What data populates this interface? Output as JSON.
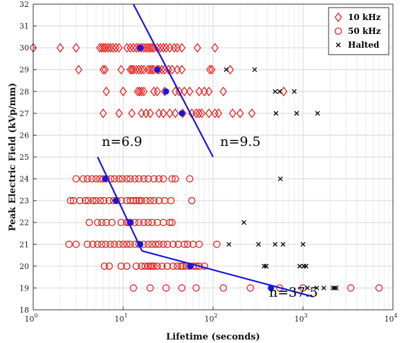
{
  "chart_data": {
    "type": "scatter",
    "xlabel": "Lifetime (seconds)",
    "ylabel": "Peak Electric Field (kVp/mm)",
    "xscale": "log",
    "xlim": [
      1,
      10000
    ],
    "ylim": [
      18,
      32
    ],
    "grid": true,
    "legend_position": "top-right",
    "x_ticks": [
      {
        "value": 1,
        "base": "10",
        "exp": "0"
      },
      {
        "value": 10,
        "base": "10",
        "exp": "1"
      },
      {
        "value": 100,
        "base": "10",
        "exp": "2"
      },
      {
        "value": 1000,
        "base": "10",
        "exp": "3"
      },
      {
        "value": 10000,
        "base": "10",
        "exp": "4"
      }
    ],
    "y_ticks": [
      "18",
      "19",
      "20",
      "21",
      "22",
      "23",
      "24",
      "25",
      "26",
      "27",
      "28",
      "29",
      "30",
      "31",
      "32"
    ],
    "series": [
      {
        "name": "10 kHz",
        "marker": "diamond",
        "color": "#e8211f",
        "points": [
          [
            1.0,
            30
          ],
          [
            2.0,
            30
          ],
          [
            3.0,
            30
          ],
          [
            5.5,
            30
          ],
          [
            5.8,
            30
          ],
          [
            6.1,
            30
          ],
          [
            6.4,
            30
          ],
          [
            6.8,
            30
          ],
          [
            7.2,
            30
          ],
          [
            7.7,
            30
          ],
          [
            8.3,
            30
          ],
          [
            9.0,
            30
          ],
          [
            11,
            30
          ],
          [
            12,
            30
          ],
          [
            13,
            30
          ],
          [
            14,
            30
          ],
          [
            15,
            30
          ],
          [
            16,
            30
          ],
          [
            17,
            30
          ],
          [
            18,
            30
          ],
          [
            19,
            30
          ],
          [
            20,
            30
          ],
          [
            21,
            30
          ],
          [
            22,
            30
          ],
          [
            24,
            30
          ],
          [
            26,
            30
          ],
          [
            28,
            30
          ],
          [
            30,
            30
          ],
          [
            33,
            30
          ],
          [
            37,
            30
          ],
          [
            40,
            30
          ],
          [
            45,
            30
          ],
          [
            67,
            30
          ],
          [
            105,
            30
          ],
          [
            3.2,
            29
          ],
          [
            6.0,
            29
          ],
          [
            6.3,
            29
          ],
          [
            9.5,
            29
          ],
          [
            12,
            29
          ],
          [
            12.5,
            29
          ],
          [
            13,
            29
          ],
          [
            14,
            29
          ],
          [
            15,
            29
          ],
          [
            16,
            29
          ],
          [
            17,
            29
          ],
          [
            19,
            29
          ],
          [
            20,
            29
          ],
          [
            21,
            29
          ],
          [
            22,
            29
          ],
          [
            24,
            29
          ],
          [
            25,
            29
          ],
          [
            27,
            29
          ],
          [
            29,
            29
          ],
          [
            32,
            29
          ],
          [
            35,
            29
          ],
          [
            40,
            29
          ],
          [
            45,
            29
          ],
          [
            92,
            29
          ],
          [
            97,
            29
          ],
          [
            155,
            29
          ],
          [
            6.5,
            28
          ],
          [
            10,
            28
          ],
          [
            14.5,
            28
          ],
          [
            15.2,
            28
          ],
          [
            16,
            28
          ],
          [
            17,
            28
          ],
          [
            22,
            28
          ],
          [
            24,
            28
          ],
          [
            29,
            28
          ],
          [
            38,
            28
          ],
          [
            42,
            28
          ],
          [
            48,
            28
          ],
          [
            55,
            28
          ],
          [
            70,
            28
          ],
          [
            80,
            28
          ],
          [
            90,
            28
          ],
          [
            130,
            28
          ],
          [
            610,
            28
          ],
          [
            6.0,
            27
          ],
          [
            9.0,
            27
          ],
          [
            12.5,
            27
          ],
          [
            16,
            27
          ],
          [
            18,
            27
          ],
          [
            20,
            27
          ],
          [
            25,
            27
          ],
          [
            28,
            27
          ],
          [
            33,
            27
          ],
          [
            38,
            27
          ],
          [
            46,
            27
          ],
          [
            58,
            27
          ],
          [
            65,
            27
          ],
          [
            70,
            27
          ],
          [
            75,
            27
          ],
          [
            90,
            27
          ],
          [
            105,
            27
          ],
          [
            115,
            27
          ],
          [
            165,
            27
          ],
          [
            200,
            27
          ],
          [
            270,
            27
          ]
        ]
      },
      {
        "name": "50 kHz",
        "marker": "circle",
        "color": "#e8211f",
        "points": [
          [
            3.0,
            24
          ],
          [
            3.6,
            24
          ],
          [
            4.0,
            24
          ],
          [
            4.5,
            24
          ],
          [
            5.0,
            24
          ],
          [
            5.5,
            24
          ],
          [
            6.0,
            24
          ],
          [
            6.5,
            24
          ],
          [
            7.3,
            24
          ],
          [
            8.0,
            24
          ],
          [
            9.0,
            24
          ],
          [
            9.8,
            24
          ],
          [
            11,
            24
          ],
          [
            12,
            24
          ],
          [
            13.5,
            24
          ],
          [
            15,
            24
          ],
          [
            17,
            24
          ],
          [
            19,
            24
          ],
          [
            22,
            24
          ],
          [
            25,
            24
          ],
          [
            28,
            24
          ],
          [
            35,
            24
          ],
          [
            38,
            24
          ],
          [
            55,
            24
          ],
          [
            2.6,
            23
          ],
          [
            2.8,
            23
          ],
          [
            3.3,
            23
          ],
          [
            3.8,
            23
          ],
          [
            4.1,
            23
          ],
          [
            4.6,
            23
          ],
          [
            5.0,
            23
          ],
          [
            5.6,
            23
          ],
          [
            6.1,
            23
          ],
          [
            7.0,
            23
          ],
          [
            7.8,
            23
          ],
          [
            8.5,
            23
          ],
          [
            9.5,
            23
          ],
          [
            11,
            23
          ],
          [
            12,
            23
          ],
          [
            13,
            23
          ],
          [
            14,
            23
          ],
          [
            15,
            23
          ],
          [
            16,
            23
          ],
          [
            18,
            23
          ],
          [
            20,
            23
          ],
          [
            22,
            23
          ],
          [
            25,
            23
          ],
          [
            29,
            23
          ],
          [
            34,
            23
          ],
          [
            58,
            23
          ],
          [
            4.2,
            22
          ],
          [
            5.2,
            22
          ],
          [
            5.8,
            22
          ],
          [
            6.5,
            22
          ],
          [
            7.5,
            22
          ],
          [
            9.5,
            22
          ],
          [
            11,
            22
          ],
          [
            11.5,
            22
          ],
          [
            12,
            22
          ],
          [
            13.5,
            22
          ],
          [
            15,
            22
          ],
          [
            17,
            22
          ],
          [
            19,
            22
          ],
          [
            21,
            22
          ],
          [
            24,
            22
          ],
          [
            28,
            22
          ],
          [
            33,
            22
          ],
          [
            35,
            22
          ],
          [
            2.5,
            21
          ],
          [
            3.0,
            21
          ],
          [
            4.0,
            21
          ],
          [
            4.6,
            21
          ],
          [
            5.2,
            21
          ],
          [
            5.8,
            21
          ],
          [
            6.4,
            21
          ],
          [
            7.2,
            21
          ],
          [
            8.0,
            21
          ],
          [
            9.0,
            21
          ],
          [
            10,
            21
          ],
          [
            11,
            21
          ],
          [
            12,
            21
          ],
          [
            13.5,
            21
          ],
          [
            15,
            21
          ],
          [
            17,
            21
          ],
          [
            19,
            21
          ],
          [
            21,
            21
          ],
          [
            23,
            21
          ],
          [
            25,
            21
          ],
          [
            28,
            21
          ],
          [
            31,
            21
          ],
          [
            36,
            21
          ],
          [
            41,
            21
          ],
          [
            48,
            21
          ],
          [
            52,
            21
          ],
          [
            60,
            21
          ],
          [
            70,
            21
          ],
          [
            110,
            21
          ],
          [
            6.2,
            20
          ],
          [
            7.0,
            20
          ],
          [
            9.5,
            20
          ],
          [
            11,
            20
          ],
          [
            14,
            20
          ],
          [
            16,
            20
          ],
          [
            17.5,
            20
          ],
          [
            19,
            20
          ],
          [
            20,
            20
          ],
          [
            21,
            20
          ],
          [
            22,
            20
          ],
          [
            24,
            20
          ],
          [
            27,
            20
          ],
          [
            31,
            20
          ],
          [
            36,
            20
          ],
          [
            40,
            20
          ],
          [
            44,
            20
          ],
          [
            46,
            20
          ],
          [
            50,
            20
          ],
          [
            55,
            20
          ],
          [
            60,
            20
          ],
          [
            65,
            20
          ],
          [
            70,
            20
          ],
          [
            80,
            20
          ],
          [
            13,
            19
          ],
          [
            20,
            19
          ],
          [
            30,
            19
          ],
          [
            45,
            19
          ],
          [
            65,
            19
          ],
          [
            130,
            19
          ],
          [
            260,
            19
          ],
          [
            550,
            19
          ],
          [
            1000,
            19
          ],
          [
            3400,
            19
          ],
          [
            7000,
            19
          ]
        ]
      },
      {
        "name": "Halted",
        "marker": "x",
        "color": "#000000",
        "points": [
          [
            140,
            29
          ],
          [
            290,
            29
          ],
          [
            490,
            28
          ],
          [
            550,
            28
          ],
          [
            800,
            28
          ],
          [
            500,
            27
          ],
          [
            850,
            27
          ],
          [
            1450,
            27
          ],
          [
            560,
            24
          ],
          [
            220,
            22
          ],
          [
            150,
            21
          ],
          [
            320,
            21
          ],
          [
            490,
            21
          ],
          [
            600,
            21
          ],
          [
            1000,
            21
          ],
          [
            370,
            20
          ],
          [
            390,
            20
          ],
          [
            920,
            20
          ],
          [
            1020,
            20
          ],
          [
            1080,
            20
          ],
          [
            1120,
            19
          ],
          [
            1420,
            19
          ],
          [
            1700,
            19
          ],
          [
            2150,
            19
          ],
          [
            2250,
            19
          ],
          [
            2350,
            19
          ]
        ]
      }
    ],
    "fit_lines": [
      {
        "label": "n=6.9",
        "points": [
          [
            5.2,
            25
          ],
          [
            16.2,
            20.7
          ]
        ],
        "label_pos": [
          5.8,
          25.5
        ]
      },
      {
        "label": "n=9.5",
        "points": [
          [
            13,
            32
          ],
          [
            100,
            25
          ]
        ],
        "label_pos": [
          120,
          25.5
        ]
      },
      {
        "label": "n=37.5",
        "points": [
          [
            16.2,
            20.7
          ],
          [
            1300,
            18.6
          ]
        ],
        "label_pos": [
          420,
          18.6
        ]
      }
    ],
    "fit_markers": [
      [
        15.5,
        30
      ],
      [
        24,
        29
      ],
      [
        30,
        28
      ],
      [
        45,
        27
      ],
      [
        6.3,
        24
      ],
      [
        8.3,
        23
      ],
      [
        12,
        22
      ],
      [
        15.5,
        21
      ],
      [
        56,
        20
      ],
      [
        440,
        19
      ]
    ],
    "line_color": "#1616e0"
  }
}
